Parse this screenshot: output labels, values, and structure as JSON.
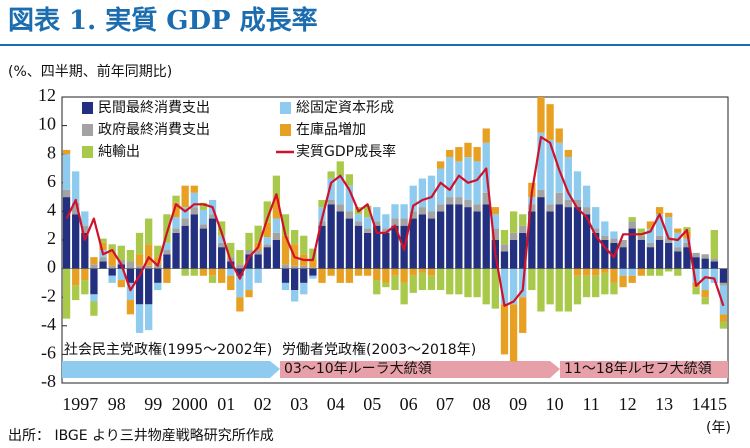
{
  "chart_data": {
    "type": "stacked-bar-line",
    "title": "図表 1. 実質 GDP 成長率",
    "subtitle": "(%、四半期、前年同期比)",
    "source": "出所： IBGE より三井物産戦略研究所作成",
    "x_unit": "(年)",
    "annotations": [
      "社会民主党政権(1995～2002年)",
      "労働者党政権(2003～2018年)",
      "03～10年ルーラ大統領",
      "11～18年ルセフ大統領"
    ],
    "categories": [
      "1997",
      null,
      null,
      null,
      "98",
      null,
      null,
      null,
      "99",
      null,
      null,
      null,
      "2000",
      null,
      null,
      null,
      "01",
      null,
      null,
      null,
      "02",
      null,
      null,
      null,
      "03",
      null,
      null,
      null,
      "04",
      null,
      null,
      null,
      "05",
      null,
      null,
      null,
      "06",
      null,
      null,
      null,
      "07",
      null,
      null,
      null,
      "08",
      null,
      null,
      null,
      "09",
      null,
      null,
      null,
      "10",
      null,
      null,
      null,
      "11",
      null,
      null,
      null,
      "12",
      null,
      null,
      null,
      "13",
      null,
      null,
      null,
      "14",
      null,
      null,
      null,
      "15"
    ],
    "ylim": [
      -8,
      12
    ],
    "yticks": [
      -8,
      -6,
      -4,
      -2,
      0,
      2,
      4,
      6,
      8,
      10,
      12
    ],
    "grid": false,
    "series": [
      {
        "name": "民間最終消費支出",
        "type": "bar",
        "color": "#233080",
        "values": [
          5.0,
          3.8,
          2.5,
          -1.8,
          0.5,
          -0.5,
          0.3,
          -1.0,
          -2.5,
          -2.5,
          -1.0,
          1.0,
          2.5,
          3.0,
          3.8,
          2.8,
          3.5,
          1.5,
          0.5,
          -0.5,
          1.0,
          1.0,
          1.5,
          2.0,
          -1.0,
          -1.5,
          -1.0,
          -0.5,
          3.0,
          4.5,
          4.0,
          3.5,
          3.0,
          2.5,
          3.0,
          2.5,
          3.0,
          3.0,
          3.5,
          3.8,
          3.5,
          4.0,
          4.5,
          4.5,
          4.3,
          4.0,
          4.5,
          2.0,
          1.2,
          2.0,
          2.5,
          4.0,
          5.0,
          4.0,
          4.5,
          4.3,
          4.3,
          3.8,
          2.5,
          2.0,
          1.8,
          1.5,
          2.8,
          2.0,
          1.5,
          2.0,
          1.8,
          1.2,
          1.5,
          0.8,
          0.7,
          0.5,
          -1.0
        ]
      },
      {
        "name": "政府最終消費支出",
        "type": "bar",
        "color": "#a3a3a3",
        "values": [
          0.5,
          0.8,
          0.5,
          0.3,
          0.3,
          0.2,
          0.3,
          0.5,
          0.2,
          0.2,
          0.3,
          0.3,
          0.3,
          0.5,
          0.5,
          0.3,
          0.3,
          0.3,
          0.3,
          0.3,
          0.3,
          0.3,
          0.2,
          0.5,
          0.3,
          0.2,
          0.2,
          0.1,
          0.3,
          0.3,
          0.5,
          0.5,
          0.3,
          0.3,
          0.3,
          0.3,
          0.5,
          0.5,
          0.5,
          0.5,
          0.5,
          0.5,
          0.5,
          0.5,
          0.5,
          0.5,
          0.8,
          0.8,
          0.5,
          0.5,
          0.5,
          0.5,
          0.5,
          0.5,
          0.8,
          0.5,
          0.5,
          0.5,
          0.3,
          0.3,
          0.3,
          0.5,
          0.5,
          0.3,
          0.3,
          0.3,
          0.3,
          0.3,
          0.3,
          0.3,
          0.3,
          0.2,
          -0.2
        ]
      },
      {
        "name": "総固定資本形成",
        "type": "bar",
        "color": "#8fcbee",
        "values": [
          2.5,
          2.2,
          1.0,
          -0.5,
          0.5,
          -0.5,
          -0.8,
          -1.2,
          -2.0,
          -1.8,
          -0.5,
          0.5,
          0.8,
          0.8,
          1.0,
          1.0,
          1.0,
          0.5,
          -0.5,
          -1.5,
          -1.5,
          -1.0,
          0.5,
          1.0,
          -0.5,
          -0.8,
          -0.8,
          -0.2,
          1.0,
          1.5,
          2.0,
          1.8,
          0.5,
          0.8,
          1.0,
          1.0,
          1.0,
          1.0,
          1.8,
          2.0,
          2.5,
          2.5,
          2.8,
          2.5,
          3.0,
          3.0,
          3.5,
          1.0,
          -2.5,
          -2.5,
          -2.0,
          0.5,
          4.0,
          4.5,
          3.5,
          3.0,
          2.0,
          1.5,
          1.5,
          1.0,
          0.5,
          -0.5,
          -0.5,
          0.0,
          1.0,
          1.5,
          1.5,
          1.0,
          0.3,
          -1.0,
          -1.5,
          -1.0,
          -2.0
        ]
      },
      {
        "name": "在庫品増加",
        "type": "bar",
        "color": "#e8a023",
        "values": [
          0.3,
          -1.2,
          -0.8,
          0.5,
          0.5,
          1.0,
          -0.5,
          -1.0,
          0.8,
          1.5,
          0.5,
          -1.0,
          1.0,
          1.5,
          0.5,
          -0.5,
          -0.5,
          -1.0,
          -1.0,
          -1.0,
          -0.5,
          0.5,
          1.0,
          1.5,
          2.0,
          1.5,
          0.8,
          0.5,
          -1.0,
          -0.5,
          -1.0,
          -1.0,
          -0.5,
          -0.5,
          -0.8,
          -1.0,
          -0.5,
          -1.0,
          -0.5,
          -0.3,
          -0.5,
          0.5,
          0.5,
          1.0,
          1.0,
          1.0,
          1.0,
          0.5,
          -3.5,
          -4.0,
          -2.5,
          1.0,
          2.5,
          2.5,
          1.0,
          0.5,
          -0.5,
          -0.5,
          -0.5,
          -0.3,
          -1.0,
          -0.8,
          -0.5,
          -0.5,
          0.5,
          0.5,
          0.3,
          0.3,
          0.5,
          -0.3,
          -0.5,
          0.0,
          -0.5
        ]
      },
      {
        "name": "純輸出",
        "type": "bar",
        "color": "#a9c94b",
        "values": [
          -3.5,
          -1.0,
          -1.0,
          -1.0,
          0.3,
          0.5,
          1.0,
          0.8,
          1.5,
          1.8,
          0.8,
          2.0,
          0.5,
          -0.5,
          -0.5,
          0.5,
          -0.5,
          1.0,
          1.0,
          1.0,
          1.2,
          1.2,
          1.5,
          1.5,
          1.5,
          1.0,
          1.3,
          0.8,
          0.5,
          0.5,
          1.0,
          0.8,
          0.5,
          0.8,
          -1.0,
          -0.3,
          -1.0,
          -1.5,
          -1.2,
          -1.2,
          -1.0,
          -1.5,
          -1.8,
          -1.8,
          -2.0,
          -2.0,
          -2.5,
          -2.8,
          1.0,
          1.5,
          0.8,
          -1.5,
          -3.0,
          -2.5,
          -3.0,
          -3.0,
          -2.0,
          -1.5,
          -1.5,
          -1.5,
          -0.8,
          0.0,
          0.3,
          0.5,
          -0.5,
          -0.5,
          -0.2,
          -0.5,
          0.3,
          -0.5,
          -0.5,
          2.0,
          -0.5
        ]
      },
      {
        "name": "実質GDP成長率",
        "type": "line",
        "color": "#d0112b",
        "values": [
          3.5,
          4.8,
          2.0,
          3.5,
          1.0,
          1.3,
          0.3,
          -1.5,
          -0.5,
          0.8,
          0.2,
          2.5,
          4.5,
          4.0,
          4.5,
          4.5,
          4.3,
          2.5,
          0.5,
          -0.7,
          0.8,
          1.5,
          3.5,
          5.2,
          2.3,
          0.8,
          0.6,
          0.6,
          3.5,
          6.0,
          6.5,
          5.5,
          4.0,
          4.5,
          2.5,
          2.5,
          3.0,
          1.3,
          4.4,
          4.8,
          5.0,
          6.0,
          5.5,
          6.5,
          6.0,
          6.2,
          7.0,
          1.0,
          -2.6,
          -2.3,
          -1.5,
          5.3,
          9.2,
          8.8,
          6.9,
          5.3,
          4.2,
          3.6,
          2.3,
          1.5,
          0.8,
          2.4,
          2.4,
          2.4,
          2.6,
          3.8,
          2.1,
          2.0,
          2.7,
          -1.2,
          -0.6,
          -0.7,
          -2.6
        ]
      }
    ]
  }
}
